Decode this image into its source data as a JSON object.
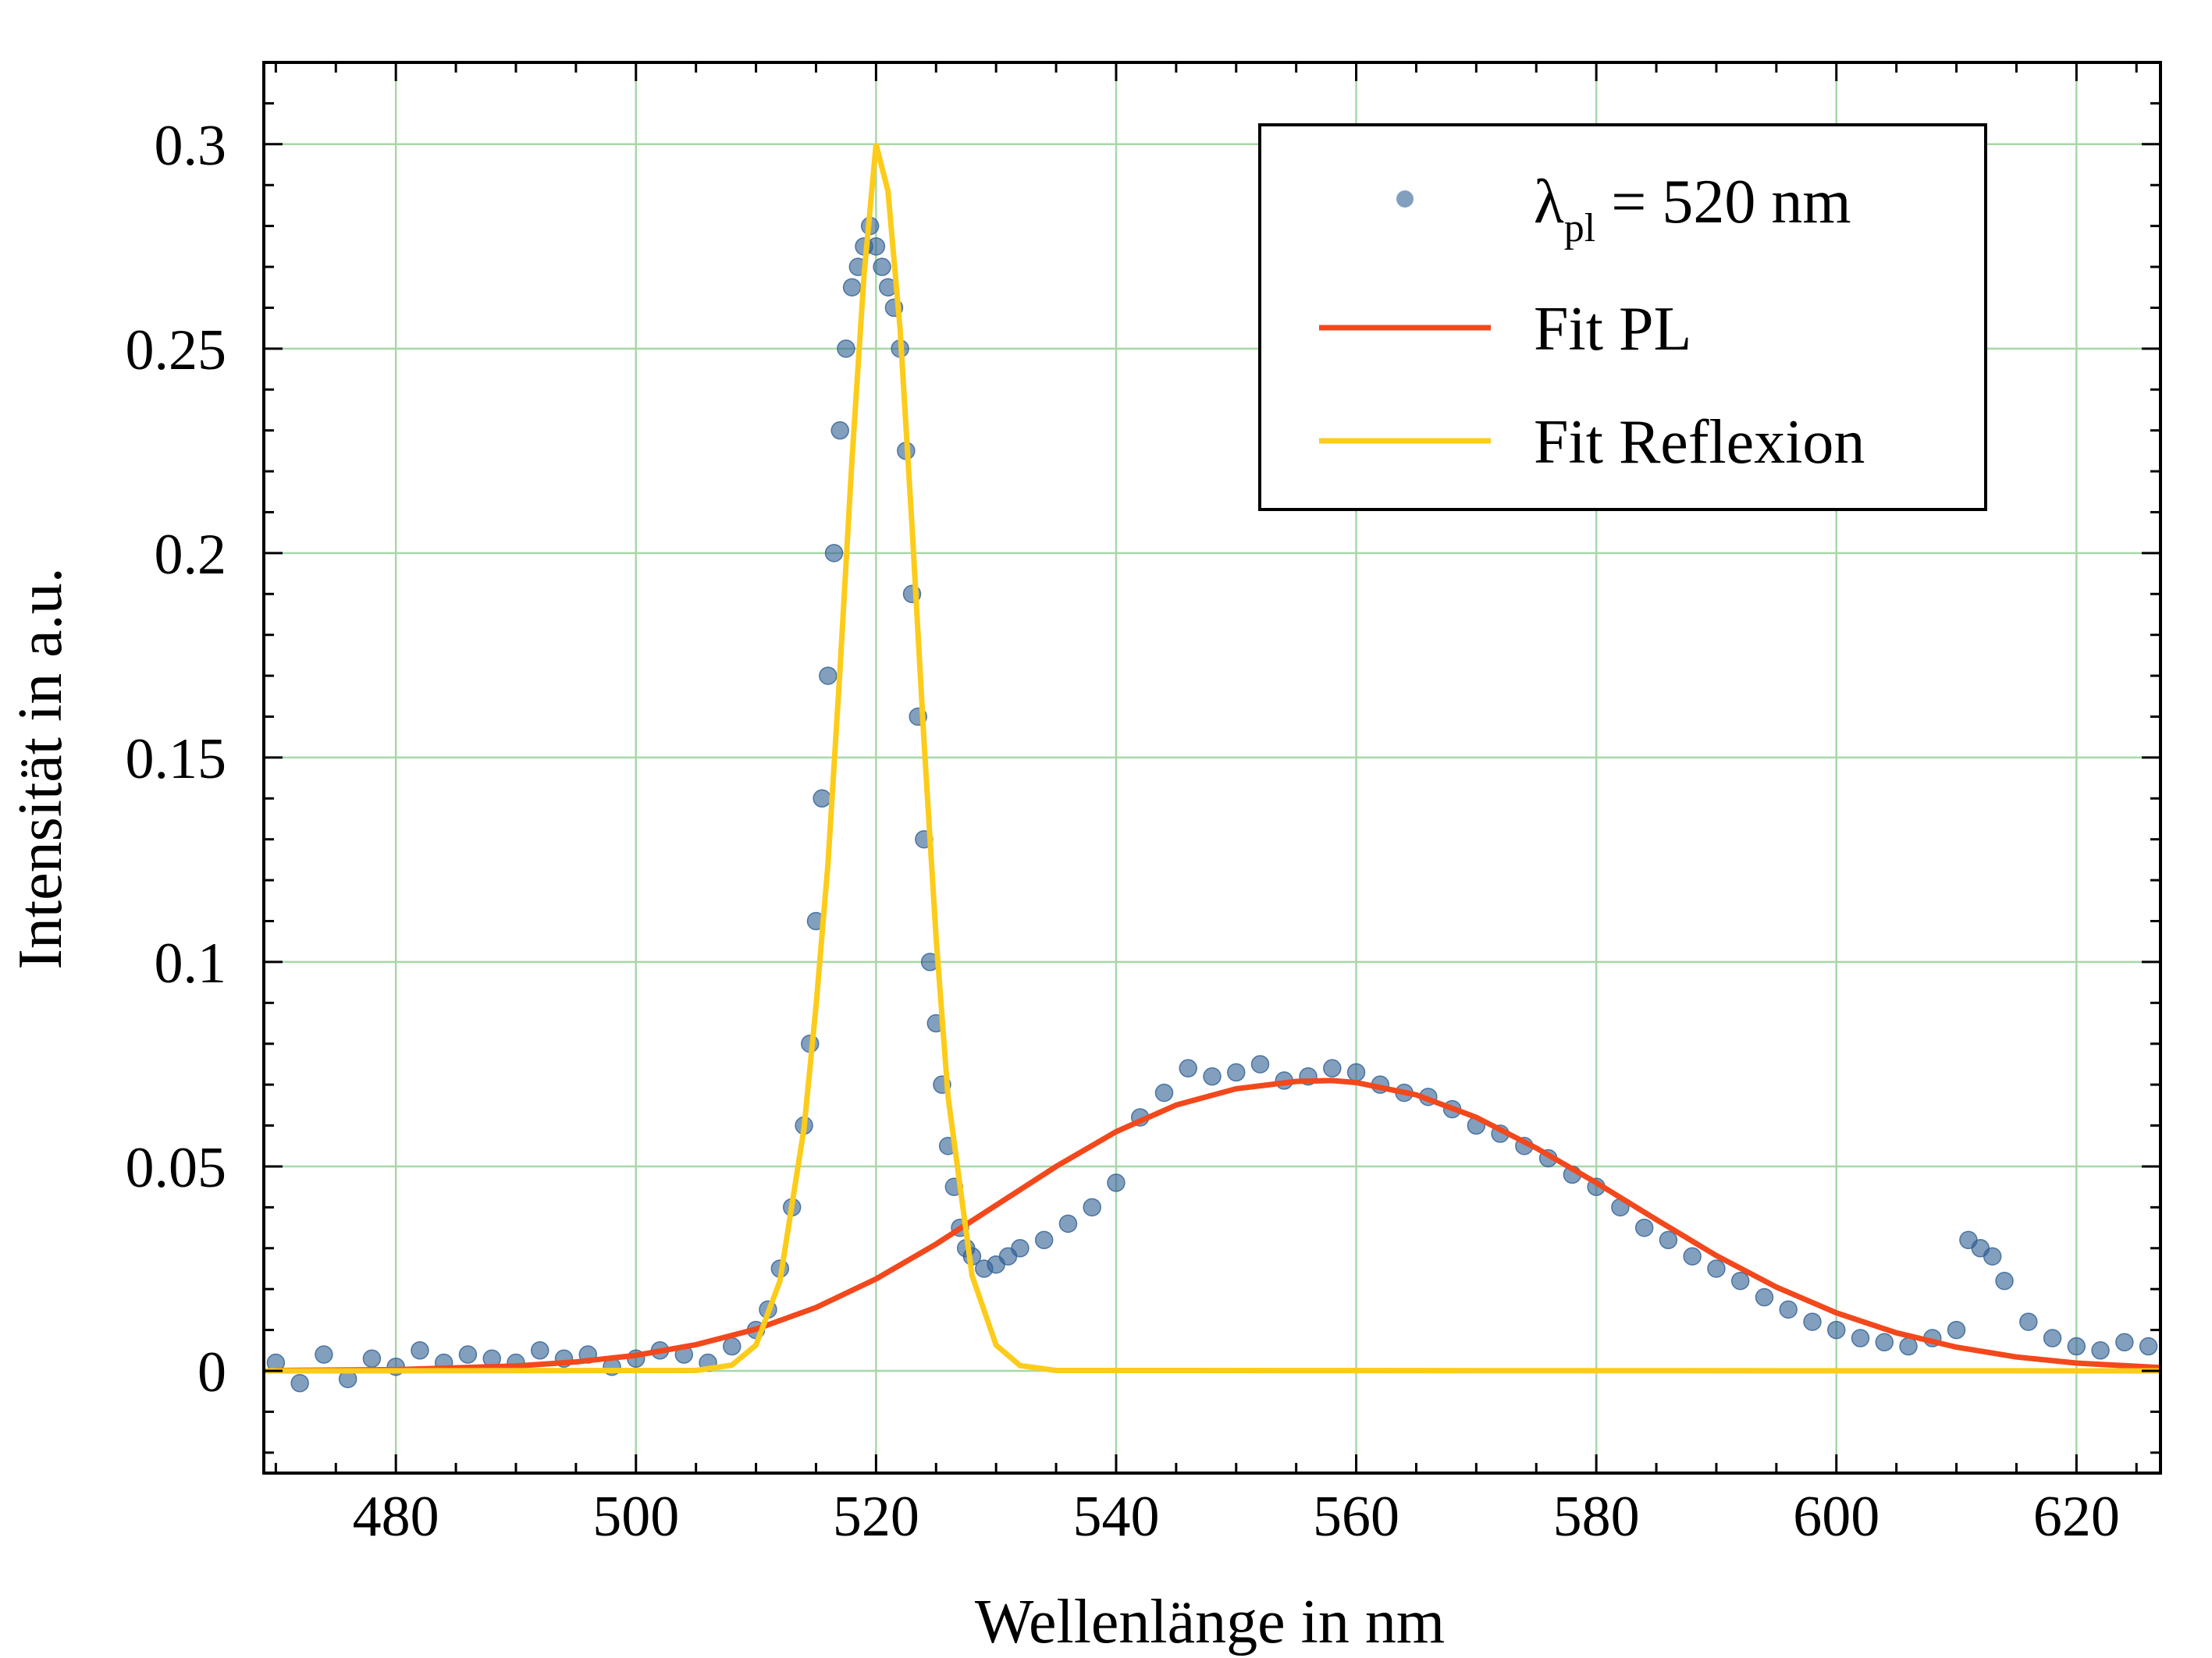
{
  "chart_data": {
    "type": "scatter",
    "xlabel": "Wellenlänge in nm",
    "ylabel": "Intensität in a.u.",
    "xlim": [
      469,
      627
    ],
    "ylim": [
      -0.025,
      0.32
    ],
    "x_ticks": [
      480,
      500,
      520,
      540,
      560,
      580,
      600,
      620
    ],
    "x_tick_labels": [
      "480",
      "500",
      "520",
      "540",
      "560",
      "580",
      "600",
      "620"
    ],
    "y_ticks": [
      0,
      0.05,
      0.1,
      0.15,
      0.2,
      0.25,
      0.3
    ],
    "y_tick_labels": [
      "0",
      "0.05",
      "0.1",
      "0.15",
      "0.2",
      "0.25",
      "0.3"
    ],
    "grid": true,
    "legend_position": "top-right",
    "colors": {
      "points": "#2f5f93",
      "fit_pl": "#f2481c",
      "fit_reflexion": "#fccc1a",
      "grid": "#a6d9a6"
    },
    "legend": {
      "points": {
        "base": "λ",
        "sub": "pl",
        "rest": " = 520 nm"
      },
      "fit_pl": "Fit PL",
      "fit_reflexion": "Fit Reflexion"
    },
    "series": [
      {
        "name": "λpl = 520 nm",
        "kind": "scatter",
        "x": [
          470,
          472,
          474,
          476,
          478,
          480,
          482,
          484,
          486,
          488,
          490,
          492,
          494,
          496,
          498,
          500,
          502,
          504,
          506,
          508,
          510,
          511,
          512,
          513,
          514,
          514.5,
          515,
          515.5,
          516,
          516.5,
          517,
          517.5,
          518,
          518.5,
          519,
          519.5,
          520,
          520.5,
          521,
          521.5,
          522,
          522.5,
          523,
          523.5,
          524,
          524.5,
          525,
          525.5,
          526,
          526.5,
          527,
          527.5,
          528,
          529,
          530,
          531,
          532,
          534,
          536,
          538,
          540,
          542,
          544,
          546,
          548,
          550,
          552,
          554,
          556,
          558,
          560,
          562,
          564,
          566,
          568,
          570,
          572,
          574,
          576,
          578,
          580,
          582,
          584,
          586,
          588,
          590,
          592,
          594,
          596,
          598,
          600,
          602,
          604,
          606,
          608,
          610,
          611,
          612,
          613,
          614,
          616,
          618,
          620,
          622,
          624,
          626
        ],
        "y": [
          0.002,
          -0.003,
          0.004,
          -0.002,
          0.003,
          0.001,
          0.005,
          0.002,
          0.004,
          0.003,
          0.002,
          0.005,
          0.003,
          0.004,
          0.001,
          0.003,
          0.005,
          0.004,
          0.002,
          0.006,
          0.01,
          0.015,
          0.025,
          0.04,
          0.06,
          0.08,
          0.11,
          0.14,
          0.17,
          0.2,
          0.23,
          0.25,
          0.265,
          0.27,
          0.275,
          0.28,
          0.275,
          0.27,
          0.265,
          0.26,
          0.25,
          0.225,
          0.19,
          0.16,
          0.13,
          0.1,
          0.085,
          0.07,
          0.055,
          0.045,
          0.035,
          0.03,
          0.028,
          0.025,
          0.026,
          0.028,
          0.03,
          0.032,
          0.036,
          0.04,
          0.046,
          0.062,
          0.068,
          0.074,
          0.072,
          0.073,
          0.075,
          0.071,
          0.072,
          0.074,
          0.073,
          0.07,
          0.068,
          0.067,
          0.064,
          0.06,
          0.058,
          0.055,
          0.052,
          0.048,
          0.045,
          0.04,
          0.035,
          0.032,
          0.028,
          0.025,
          0.022,
          0.018,
          0.015,
          0.012,
          0.01,
          0.008,
          0.007,
          0.006,
          0.008,
          0.01,
          0.032,
          0.03,
          0.028,
          0.022,
          0.012,
          0.008,
          0.006,
          0.005,
          0.007,
          0.006
        ]
      },
      {
        "name": "Fit PL",
        "kind": "line",
        "x": [
          470,
          480,
          490,
          495,
          500,
          505,
          510,
          515,
          520,
          525,
          530,
          535,
          540,
          545,
          550,
          555,
          558,
          560,
          565,
          570,
          575,
          580,
          585,
          590,
          595,
          600,
          605,
          610,
          615,
          620,
          627
        ],
        "y": [
          0.0001,
          0.0003,
          0.0012,
          0.0022,
          0.0038,
          0.0064,
          0.0102,
          0.0155,
          0.0225,
          0.031,
          0.0405,
          0.05,
          0.0585,
          0.065,
          0.069,
          0.0708,
          0.071,
          0.0705,
          0.0675,
          0.062,
          0.0545,
          0.046,
          0.037,
          0.0282,
          0.0205,
          0.0142,
          0.0093,
          0.0058,
          0.0034,
          0.0019,
          0.0008
        ]
      },
      {
        "name": "Fit Reflexion",
        "kind": "line",
        "x": [
          469,
          505,
          508,
          510,
          512,
          514,
          515,
          516,
          517,
          518,
          519,
          520,
          521,
          522,
          523,
          524,
          525,
          526,
          528,
          530,
          532,
          535,
          627
        ],
        "y": [
          0,
          0.0001,
          0.0014,
          0.0063,
          0.022,
          0.0593,
          0.0892,
          0.124,
          0.1715,
          0.223,
          0.268,
          0.3,
          0.2885,
          0.255,
          0.2065,
          0.1538,
          0.106,
          0.0671,
          0.0233,
          0.0063,
          0.0013,
          0.0001,
          0
        ]
      }
    ]
  }
}
